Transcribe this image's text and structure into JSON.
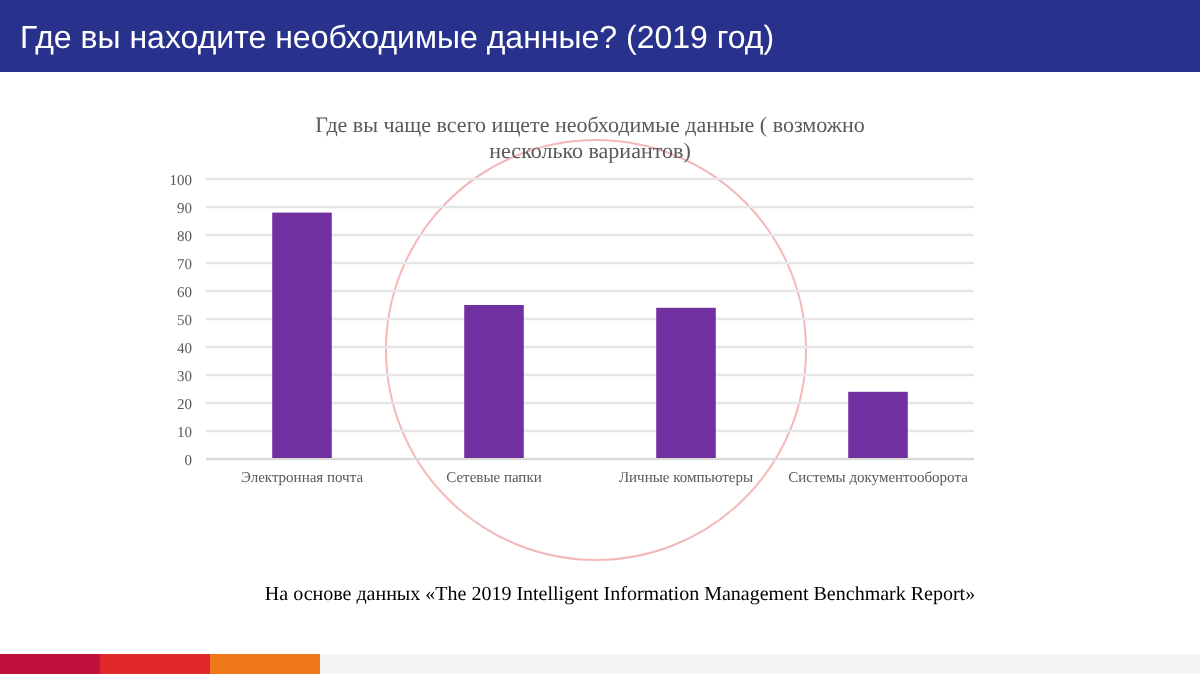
{
  "chart_data": {
    "type": "bar",
    "title": "Где вы находите необходимые данные? (2019 год)",
    "subtitle": "Где вы чаще всего ищете необходимые данные ( возможно несколько вариантов)",
    "categories": [
      "Электронная почта",
      "Сетевые папки",
      "Личные компьютеры",
      "Системы документооборота"
    ],
    "values": [
      88,
      55,
      54,
      24
    ],
    "color": "#7030a0",
    "ylim": [
      0,
      100
    ],
    "yticks": [
      0,
      10,
      20,
      30,
      40,
      50,
      60,
      70,
      80,
      90,
      100
    ],
    "grid": "y",
    "annotations": [
      "На основе данных «The 2019 Intelligent Information Management Benchmark Report»"
    ]
  }
}
